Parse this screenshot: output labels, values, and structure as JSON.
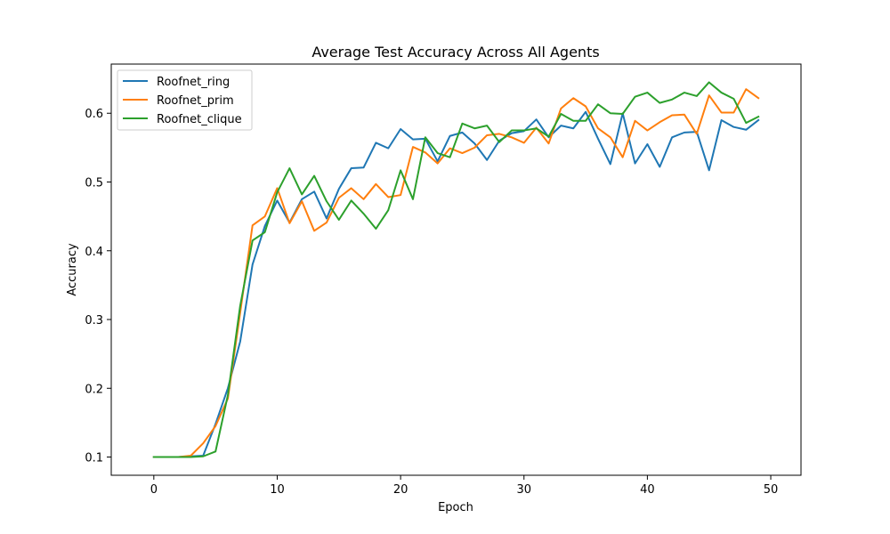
{
  "chart_data": {
    "type": "line",
    "title": "Average Test Accuracy Across All Agents",
    "xlabel": "Epoch",
    "ylabel": "Accuracy",
    "xlim": [
      -3.45,
      52.45
    ],
    "ylim": [
      0.0735,
      0.6715
    ],
    "xticks": [
      0,
      10,
      20,
      30,
      40,
      50
    ],
    "yticks": [
      0.1,
      0.2,
      0.3,
      0.4,
      0.5,
      0.6
    ],
    "grid": false,
    "legend_position": "top-left",
    "x": [
      0,
      1,
      2,
      3,
      4,
      5,
      6,
      7,
      8,
      9,
      10,
      11,
      12,
      13,
      14,
      15,
      16,
      17,
      18,
      19,
      20,
      21,
      22,
      23,
      24,
      25,
      26,
      27,
      28,
      29,
      30,
      31,
      32,
      33,
      34,
      35,
      36,
      37,
      38,
      39,
      40,
      41,
      42,
      43,
      44,
      45,
      46,
      47,
      48,
      49
    ],
    "series": [
      {
        "name": "Roofnet_ring",
        "color": "#1f77b4",
        "values": [
          0.1,
          0.1,
          0.1,
          0.101,
          0.102,
          0.148,
          0.2,
          0.268,
          0.38,
          0.436,
          0.473,
          0.441,
          0.475,
          0.486,
          0.447,
          0.49,
          0.52,
          0.521,
          0.557,
          0.549,
          0.577,
          0.562,
          0.563,
          0.53,
          0.567,
          0.572,
          0.556,
          0.532,
          0.56,
          0.571,
          0.574,
          0.591,
          0.565,
          0.582,
          0.578,
          0.602,
          0.563,
          0.526,
          0.6,
          0.527,
          0.555,
          0.522,
          0.565,
          0.572,
          0.573,
          0.517,
          0.59,
          0.58,
          0.576,
          0.59
        ]
      },
      {
        "name": "Roofnet_prim",
        "color": "#ff7f0e",
        "values": [
          0.1,
          0.1,
          0.1,
          0.102,
          0.12,
          0.145,
          0.185,
          0.31,
          0.437,
          0.45,
          0.491,
          0.44,
          0.472,
          0.429,
          0.441,
          0.477,
          0.491,
          0.475,
          0.497,
          0.478,
          0.481,
          0.551,
          0.543,
          0.527,
          0.549,
          0.542,
          0.55,
          0.568,
          0.57,
          0.565,
          0.557,
          0.579,
          0.556,
          0.607,
          0.622,
          0.61,
          0.578,
          0.565,
          0.536,
          0.589,
          0.575,
          0.587,
          0.597,
          0.598,
          0.57,
          0.626,
          0.601,
          0.601,
          0.635,
          0.622
        ]
      },
      {
        "name": "Roofnet_clique",
        "color": "#2ca02c",
        "values": [
          0.1,
          0.1,
          0.1,
          0.1,
          0.101,
          0.108,
          0.19,
          0.32,
          0.415,
          0.427,
          0.485,
          0.52,
          0.482,
          0.509,
          0.472,
          0.445,
          0.473,
          0.454,
          0.432,
          0.459,
          0.517,
          0.475,
          0.565,
          0.542,
          0.536,
          0.585,
          0.578,
          0.582,
          0.558,
          0.575,
          0.575,
          0.578,
          0.566,
          0.599,
          0.589,
          0.589,
          0.613,
          0.6,
          0.599,
          0.624,
          0.63,
          0.615,
          0.62,
          0.63,
          0.625,
          0.645,
          0.63,
          0.621,
          0.586,
          0.595
        ]
      }
    ]
  }
}
